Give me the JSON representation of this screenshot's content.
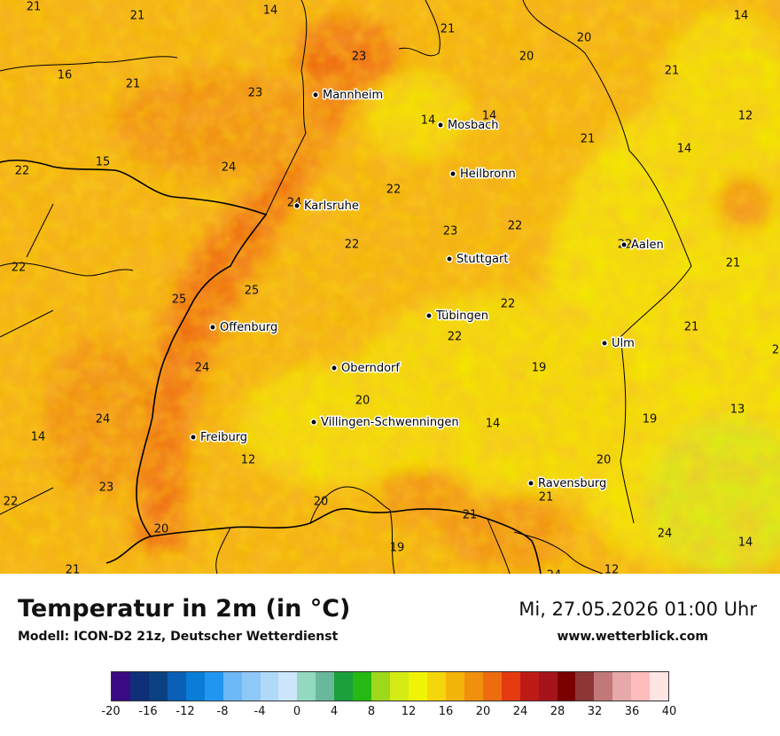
{
  "map": {
    "cities": [
      {
        "name": "Mannheim"
      },
      {
        "name": "Mosbach"
      },
      {
        "name": "Heilbronn"
      },
      {
        "name": "Karlsruhe"
      },
      {
        "name": "Stuttgart"
      },
      {
        "name": "Aalen"
      },
      {
        "name": "Tübingen"
      },
      {
        "name": "Offenburg"
      },
      {
        "name": "Ulm"
      },
      {
        "name": "Oberndorf"
      },
      {
        "name": "Villingen-Schwenningen"
      },
      {
        "name": "Freiburg"
      },
      {
        "name": "Ravensburg"
      }
    ],
    "temperature_values": [
      "21",
      "21",
      "14",
      "14",
      "21",
      "20",
      "20",
      "23",
      "16",
      "21",
      "21",
      "23",
      "12",
      "14",
      "14",
      "21",
      "14",
      "22",
      "15",
      "24",
      "22",
      "24",
      "22",
      "22",
      "23",
      "22",
      "21",
      "22",
      "25",
      "25",
      "22",
      "21",
      "22",
      "24",
      "19",
      "2",
      "24",
      "20",
      "19",
      "14",
      "13",
      "14",
      "12",
      "20",
      "23",
      "21",
      "20",
      "22",
      "21",
      "24",
      "20",
      "19",
      "14",
      "21",
      "12",
      "24"
    ]
  },
  "title": "Temperatur in 2m (in °C)",
  "subtitle": "Modell: ICON-D2 21z, Deutscher Wetterdienst",
  "datetime": "Mi, 27.05.2026 01:00 Uhr",
  "website": "www.wetterblick.com",
  "scale": {
    "colors": [
      "#3a0a82",
      "#0f2f78",
      "#0b4180",
      "#0a5fb6",
      "#0a7ed6",
      "#2196f1",
      "#6db8f6",
      "#8ec8f7",
      "#b0d8f8",
      "#cde6fb",
      "#93d9c0",
      "#6ab89b",
      "#1ba03c",
      "#26b814",
      "#9ed81a",
      "#d4eb14",
      "#f1f306",
      "#f4d60a",
      "#f3b40a",
      "#f0900c",
      "#ee6c10",
      "#e53a0f",
      "#bf1b16",
      "#a5141a",
      "#7a0000",
      "#8e3636",
      "#c27878",
      "#e6a8a8",
      "#ffbcbc",
      "#ffe4e4"
    ],
    "labels": [
      "-20",
      "-16",
      "-12",
      "-8",
      "-4",
      "0",
      "4",
      "8",
      "12",
      "16",
      "20",
      "24",
      "28",
      "32",
      "36",
      "40"
    ]
  }
}
